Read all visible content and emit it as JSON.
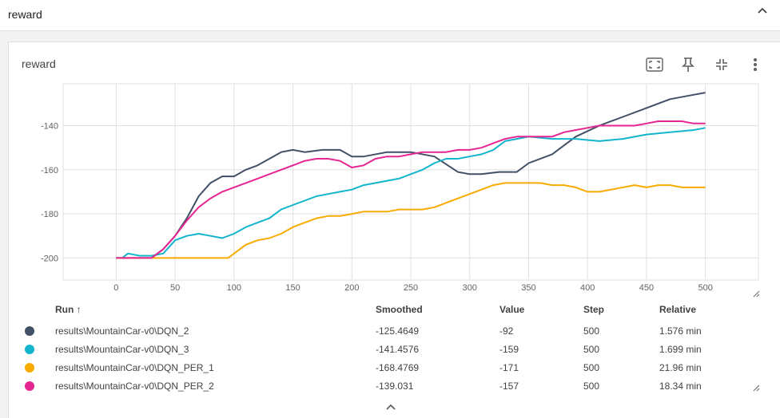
{
  "section": {
    "title": "reward",
    "toggle_icon": "chevron-up-icon"
  },
  "card": {
    "title": "reward"
  },
  "toolbar": [
    "fullscreen-icon",
    "pin-icon",
    "fit-domain-icon",
    "more-vert-icon"
  ],
  "table": {
    "headers": {
      "run": "Run ↑",
      "smoothed": "Smoothed",
      "value": "Value",
      "step": "Step",
      "relative": "Relative"
    },
    "rows": [
      {
        "color": "#425066",
        "run": "results\\MountainCar-v0\\DQN_2",
        "smoothed": "-125.4649",
        "value": "-92",
        "step": "500",
        "relative": "1.576 min"
      },
      {
        "color": "#12b5cb",
        "run": "results\\MountainCar-v0\\DQN_3",
        "smoothed": "-141.4576",
        "value": "-159",
        "step": "500",
        "relative": "1.699 min"
      },
      {
        "color": "#f9ab00",
        "run": "results\\MountainCar-v0\\DQN_PER_1",
        "smoothed": "-168.4769",
        "value": "-171",
        "step": "500",
        "relative": "21.96 min"
      },
      {
        "color": "#e52592",
        "run": "results\\MountainCar-v0\\DQN_PER_2",
        "smoothed": "-139.031",
        "value": "-157",
        "step": "500",
        "relative": "18.34 min"
      }
    ]
  },
  "chart_data": {
    "type": "line",
    "title": "",
    "xlabel": "",
    "ylabel": "",
    "xlim": [
      -45,
      545
    ],
    "ylim": [
      -210,
      -121
    ],
    "x_ticks": [
      0,
      50,
      100,
      150,
      200,
      250,
      300,
      350,
      400,
      450,
      500
    ],
    "y_ticks": [
      -200,
      -180,
      -160,
      -140
    ],
    "grid": true,
    "series": [
      {
        "name": "results\\MountainCar-v0\\DQN_2",
        "color": "#425066",
        "x": [
          0,
          30,
          40,
          50,
          60,
          70,
          80,
          90,
          100,
          110,
          120,
          130,
          140,
          150,
          160,
          175,
          190,
          200,
          210,
          230,
          250,
          270,
          290,
          300,
          310,
          325,
          340,
          350,
          370,
          390,
          410,
          430,
          450,
          470,
          490,
          500
        ],
        "y": [
          -200,
          -200,
          -196,
          -190,
          -182,
          -172,
          -166,
          -163,
          -163,
          -160,
          -158,
          -155,
          -152,
          -151,
          -152,
          -151,
          -151,
          -154,
          -154,
          -152,
          -152,
          -154,
          -161,
          -162,
          -162,
          -161,
          -161,
          -157,
          -153,
          -145,
          -140,
          -136,
          -132,
          -128,
          -126,
          -125
        ]
      },
      {
        "name": "results\\MountainCar-v0\\DQN_3",
        "color": "#12b5cb",
        "x": [
          0,
          5,
          10,
          20,
          30,
          40,
          50,
          60,
          70,
          80,
          90,
          100,
          110,
          120,
          130,
          140,
          150,
          160,
          170,
          180,
          190,
          200,
          210,
          220,
          230,
          240,
          250,
          260,
          270,
          280,
          290,
          300,
          310,
          320,
          330,
          340,
          350,
          370,
          390,
          410,
          430,
          450,
          470,
          490,
          500
        ],
        "y": [
          -200,
          -200,
          -198,
          -199,
          -199,
          -198,
          -192,
          -190,
          -189,
          -190,
          -191,
          -189,
          -186,
          -184,
          -182,
          -178,
          -176,
          -174,
          -172,
          -171,
          -170,
          -169,
          -167,
          -166,
          -165,
          -164,
          -162,
          -160,
          -157,
          -155,
          -155,
          -154,
          -153,
          -151,
          -147,
          -146,
          -145,
          -146,
          -146,
          -147,
          -146,
          -144,
          -143,
          -142,
          -141
        ]
      },
      {
        "name": "results\\MountainCar-v0\\DQN_PER_1",
        "color": "#f9ab00",
        "x": [
          0,
          20,
          40,
          60,
          80,
          95,
          100,
          110,
          120,
          130,
          140,
          150,
          160,
          170,
          180,
          190,
          200,
          210,
          220,
          230,
          240,
          250,
          260,
          270,
          280,
          290,
          300,
          310,
          320,
          330,
          340,
          350,
          360,
          370,
          380,
          390,
          400,
          410,
          420,
          430,
          440,
          450,
          460,
          470,
          480,
          490,
          500
        ],
        "y": [
          -200,
          -200,
          -200,
          -200,
          -200,
          -200,
          -198,
          -194,
          -192,
          -191,
          -189,
          -186,
          -184,
          -182,
          -181,
          -181,
          -180,
          -179,
          -179,
          -179,
          -178,
          -178,
          -178,
          -177,
          -175,
          -173,
          -171,
          -169,
          -167,
          -166,
          -166,
          -166,
          -166,
          -167,
          -167,
          -168,
          -170,
          -170,
          -169,
          -168,
          -167,
          -168,
          -167,
          -167,
          -168,
          -168,
          -168
        ]
      },
      {
        "name": "results\\MountainCar-v0\\DQN_PER_2",
        "color": "#e52592",
        "x": [
          0,
          20,
          30,
          40,
          50,
          60,
          70,
          80,
          90,
          100,
          110,
          120,
          130,
          140,
          150,
          160,
          170,
          180,
          190,
          200,
          210,
          220,
          230,
          240,
          250,
          260,
          270,
          280,
          290,
          300,
          310,
          320,
          330,
          340,
          350,
          360,
          370,
          380,
          390,
          400,
          410,
          420,
          430,
          440,
          450,
          460,
          470,
          480,
          490,
          500
        ],
        "y": [
          -200,
          -200,
          -200,
          -196,
          -190,
          -183,
          -177,
          -173,
          -170,
          -168,
          -166,
          -164,
          -162,
          -160,
          -158,
          -156,
          -155,
          -155,
          -156,
          -159,
          -158,
          -155,
          -154,
          -154,
          -153,
          -152,
          -152,
          -152,
          -151,
          -151,
          -150,
          -148,
          -146,
          -145,
          -145,
          -145,
          -145,
          -143,
          -142,
          -141,
          -140,
          -140,
          -140,
          -140,
          -139,
          -138,
          -138,
          -138,
          -139,
          -139
        ]
      }
    ]
  }
}
